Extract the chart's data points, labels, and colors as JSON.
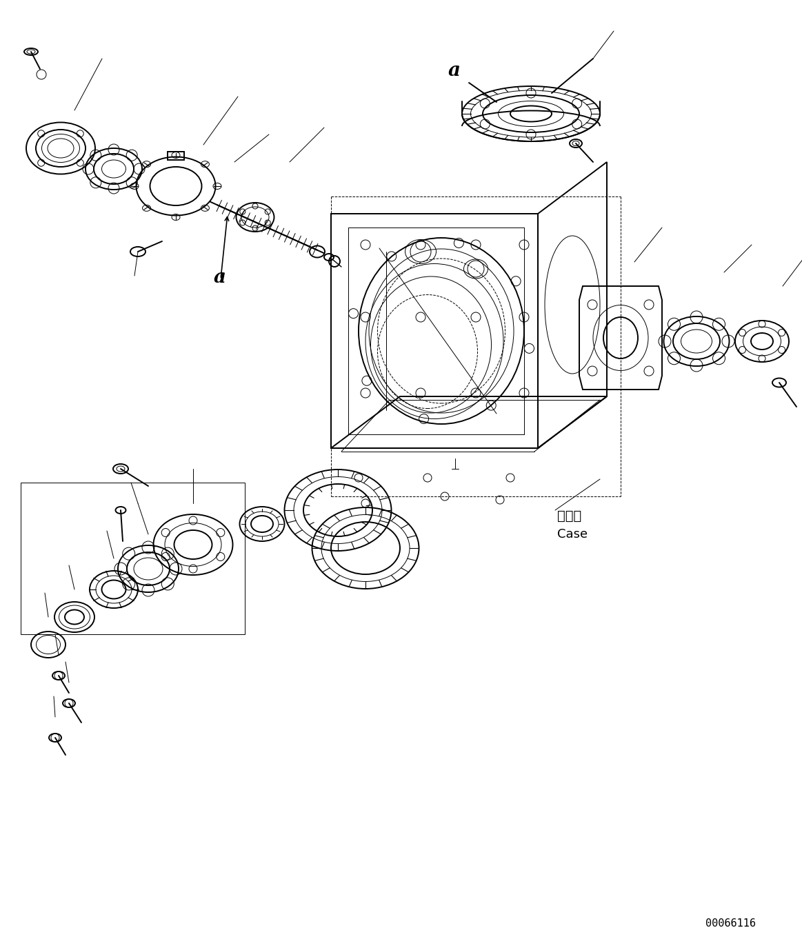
{
  "bg_color": "#ffffff",
  "line_color": "#000000",
  "fig_width": 11.63,
  "fig_height": 13.62,
  "dpi": 100,
  "watermark": "00066116",
  "label_a_shaft": "a",
  "label_a_gear": "a",
  "label_case_jp": "ケース",
  "label_case_en": "Case",
  "lw_main": 1.4,
  "lw_thin": 0.7,
  "lw_med": 1.0
}
